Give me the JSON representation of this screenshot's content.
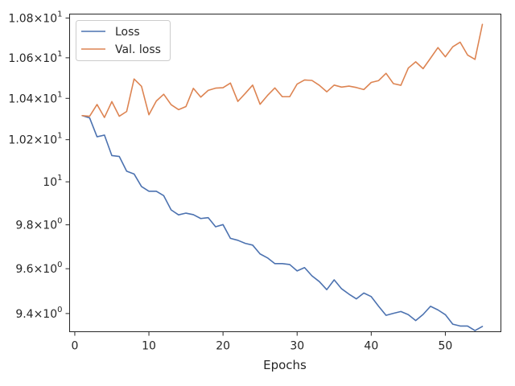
{
  "chart_data": {
    "type": "line",
    "title": "",
    "xlabel": "Epochs",
    "ylabel": "",
    "yscale": "log",
    "xlim": [
      -0.7,
      57.5
    ],
    "ylim": [
      9.32,
      10.82
    ],
    "grid": false,
    "legend_position": "top-left",
    "x_ticks": [
      {
        "value": 0,
        "label": "0"
      },
      {
        "value": 10,
        "label": "10"
      },
      {
        "value": 20,
        "label": "20"
      },
      {
        "value": 30,
        "label": "30"
      },
      {
        "value": 40,
        "label": "40"
      },
      {
        "value": 50,
        "label": "50"
      }
    ],
    "y_ticks": [
      {
        "value": 9.4,
        "mant": "9.4",
        "exp": "0"
      },
      {
        "value": 9.6,
        "mant": "9.6",
        "exp": "0"
      },
      {
        "value": 9.8,
        "mant": "9.8",
        "exp": "0"
      },
      {
        "value": 10.0,
        "mant": "10",
        "exp": "1"
      },
      {
        "value": 10.2,
        "mant": "1.02",
        "exp": "1"
      },
      {
        "value": 10.4,
        "mant": "1.04",
        "exp": "1"
      },
      {
        "value": 10.6,
        "mant": "1.06",
        "exp": "1"
      },
      {
        "value": 10.8,
        "mant": "1.08",
        "exp": "1"
      }
    ],
    "x": [
      1,
      2,
      3,
      4,
      5,
      6,
      7,
      8,
      9,
      10,
      11,
      12,
      13,
      14,
      15,
      16,
      17,
      18,
      19,
      20,
      21,
      22,
      23,
      24,
      25,
      26,
      27,
      28,
      29,
      30,
      31,
      32,
      33,
      34,
      35,
      36,
      37,
      38,
      39,
      40,
      41,
      42,
      43,
      44,
      45,
      46,
      47,
      48,
      49,
      50,
      51,
      52,
      53,
      54,
      55
    ],
    "series": [
      {
        "name": "Loss",
        "color": "#4c72b0",
        "values": [
          10.316,
          10.305,
          10.214,
          10.222,
          10.124,
          10.12,
          10.05,
          10.037,
          9.978,
          9.956,
          9.956,
          9.935,
          9.869,
          9.846,
          9.854,
          9.847,
          9.829,
          9.833,
          9.791,
          9.801,
          9.738,
          9.729,
          9.715,
          9.707,
          9.667,
          9.649,
          9.623,
          9.623,
          9.619,
          9.59,
          9.605,
          9.568,
          9.542,
          9.506,
          9.55,
          9.51,
          9.486,
          9.465,
          9.491,
          9.475,
          9.432,
          9.392,
          9.401,
          9.409,
          9.395,
          9.369,
          9.396,
          9.432,
          9.416,
          9.395,
          9.353,
          9.345,
          9.345,
          9.325,
          9.343
        ]
      },
      {
        "name": "Val. loss",
        "color": "#dd8452",
        "values": [
          10.316,
          10.313,
          10.37,
          10.307,
          10.384,
          10.313,
          10.336,
          10.495,
          10.459,
          10.32,
          10.387,
          10.42,
          10.369,
          10.345,
          10.36,
          10.449,
          10.406,
          10.439,
          10.45,
          10.452,
          10.475,
          10.385,
          10.424,
          10.465,
          10.371,
          10.414,
          10.451,
          10.408,
          10.408,
          10.47,
          10.49,
          10.488,
          10.464,
          10.432,
          10.465,
          10.455,
          10.46,
          10.453,
          10.443,
          10.478,
          10.487,
          10.523,
          10.472,
          10.464,
          10.549,
          10.58,
          10.546,
          10.598,
          10.651,
          10.605,
          10.655,
          10.678,
          10.614,
          10.592,
          10.768
        ]
      }
    ]
  }
}
